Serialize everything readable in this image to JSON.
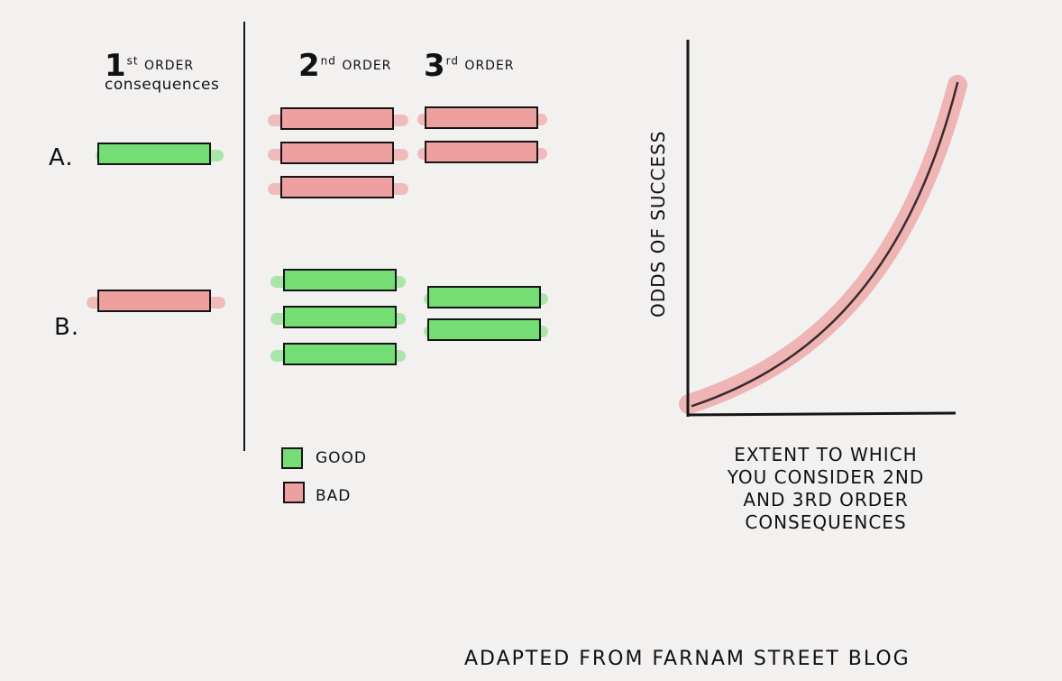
{
  "columns": {
    "first": {
      "number": "1",
      "suffix": "st",
      "word": "ORDER",
      "second_line": "consequences"
    },
    "second": {
      "number": "2",
      "suffix": "nd",
      "word": "ORDER"
    },
    "third": {
      "number": "3",
      "suffix": "rd",
      "word": "ORDER"
    }
  },
  "rows": {
    "a": {
      "label": "A."
    },
    "b": {
      "label": "B."
    }
  },
  "boxes": {
    "a_first": [
      "good"
    ],
    "a_second": [
      "bad",
      "bad",
      "bad"
    ],
    "a_third": [
      "bad",
      "bad"
    ],
    "b_first": [
      "bad"
    ],
    "b_second": [
      "good",
      "good",
      "good"
    ],
    "b_third": [
      "good",
      "good"
    ]
  },
  "legend": {
    "good": {
      "label": "GOOD",
      "color": "#74dd74"
    },
    "bad": {
      "label": "BAD",
      "color": "#eea0a0"
    }
  },
  "graph": {
    "y_axis_label": "ODDS OF SUCCESS",
    "x_axis_label_lines": [
      "EXTENT TO WHICH",
      "YOU CONSIDER 2nd",
      "AND 3rd ORDER",
      "CONSEQUENCES"
    ],
    "curve_color": "#3a2a2a",
    "highlight_color": "#eea0a0"
  },
  "credit": "ADAPTED FROM FARNAM STREET BLOG"
}
